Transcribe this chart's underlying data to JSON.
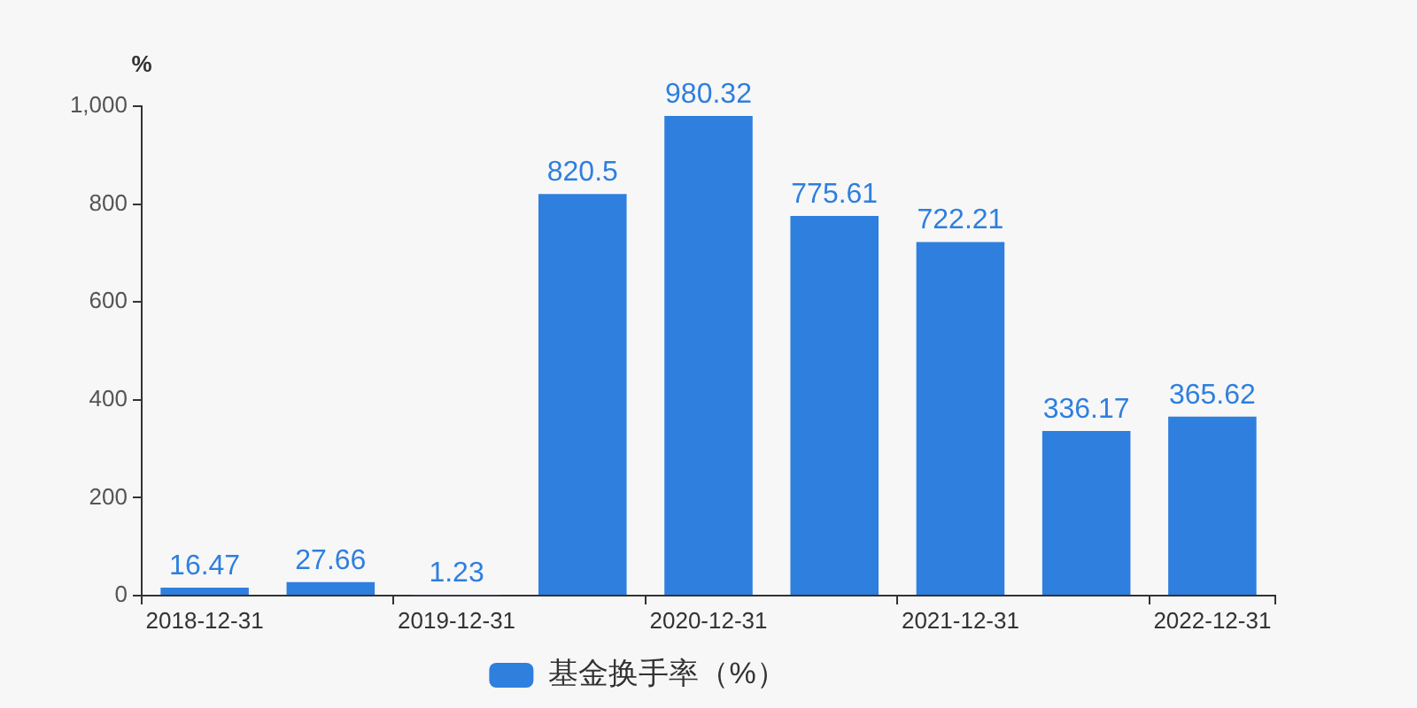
{
  "chart_data": {
    "type": "bar",
    "ylabel": "%",
    "categories": [
      "2018-12-31",
      null,
      "2019-12-31",
      null,
      "2020-12-31",
      null,
      "2021-12-31",
      null,
      "2022-12-31"
    ],
    "series": [
      {
        "name": "基金换手率（%）",
        "color": "#2e7fde",
        "values": [
          16.47,
          27.66,
          1.23,
          820.5,
          980.32,
          775.61,
          722.21,
          336.17,
          365.62
        ]
      }
    ],
    "ylim": [
      0,
      1000
    ],
    "yticks": [
      0,
      200,
      400,
      600,
      800,
      {
        "value": 1000,
        "label": "1,000"
      }
    ],
    "data_labels": true,
    "grid": false,
    "legend": "bottom"
  }
}
